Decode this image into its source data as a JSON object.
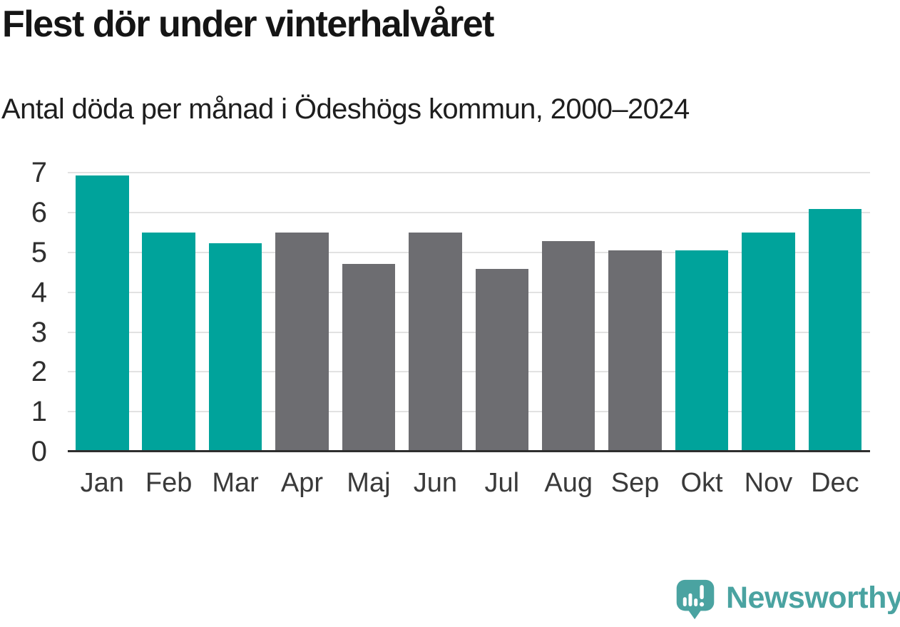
{
  "title": "Flest dör under vinterhalvåret",
  "subtitle": "Antal döda per månad i Ödeshögs kommun, 2000–2024",
  "branding": {
    "wordmark": "Newsworthy",
    "logo_icon": "newsworthy-speech-bubble-bar-chart-icon"
  },
  "colors": {
    "winter_bar": "#00a39b",
    "summer_bar": "#6d6d71",
    "gridline": "#e2e2e2",
    "axis_line": "#2e2e2e",
    "y_tick_text": "#2f2f2f",
    "x_tick_text": "#3a3a3a",
    "title_text": "#151515",
    "subtitle_text": "#1e1e1e",
    "brand_teal": "#4aa3a1",
    "background": "#ffffff"
  },
  "chart_data": {
    "type": "bar",
    "title": "Flest dör under vinterhalvåret",
    "subtitle": "Antal döda per månad i Ödeshögs kommun, 2000–2024",
    "categories": [
      "Jan",
      "Feb",
      "Mar",
      "Apr",
      "Maj",
      "Jun",
      "Jul",
      "Aug",
      "Sep",
      "Okt",
      "Nov",
      "Dec"
    ],
    "values": [
      6.94,
      5.51,
      5.24,
      5.51,
      4.72,
      5.51,
      4.58,
      5.29,
      5.06,
      5.05,
      5.51,
      6.1
    ],
    "bar_colors": [
      "#00a39b",
      "#00a39b",
      "#00a39b",
      "#6d6d71",
      "#6d6d71",
      "#6d6d71",
      "#6d6d71",
      "#6d6d71",
      "#6d6d71",
      "#00a39b",
      "#00a39b",
      "#00a39b"
    ],
    "color_meaning": "teal = winter half-year months (Jan–Mar, Okt–Dec), gray = summer half-year months (Apr–Sep)",
    "xlabel": "",
    "ylabel": "",
    "ylim": [
      0,
      7
    ],
    "yticks": [
      0,
      1,
      2,
      3,
      4,
      5,
      6,
      7
    ],
    "grid": true,
    "legend": "none"
  }
}
